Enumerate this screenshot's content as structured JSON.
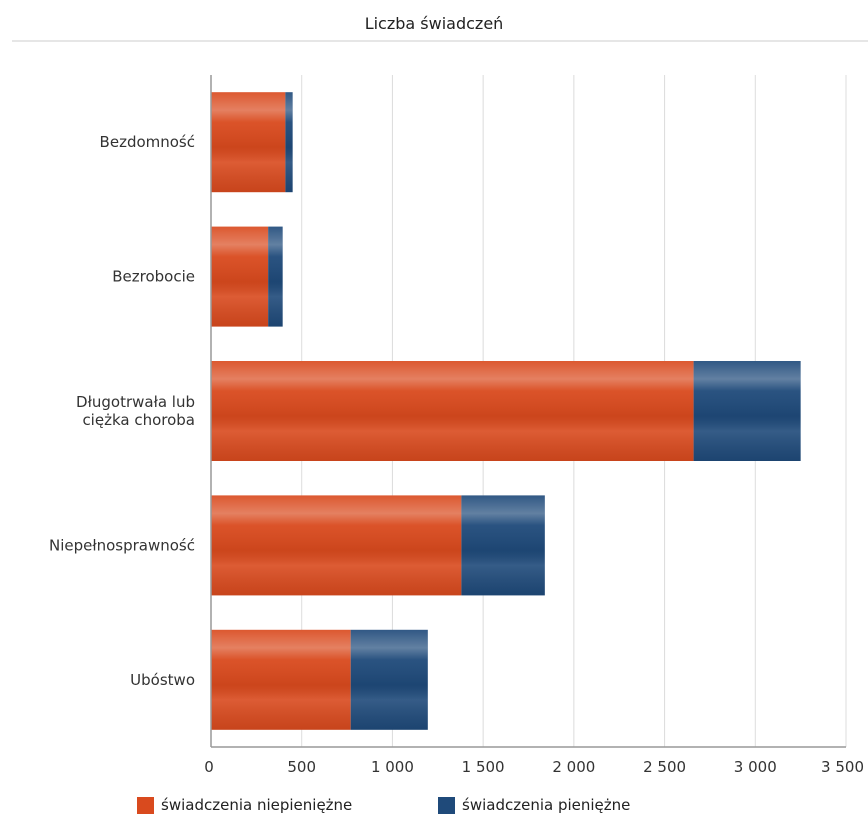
{
  "chart_data": {
    "type": "bar",
    "orientation": "horizontal",
    "stacked": true,
    "title": "Liczba świadczeń",
    "categories": [
      "Bezdomność",
      "Bezrobocie",
      "Długotrwała lub ciężka choroba",
      "Niepełnosprawność",
      "Ubóstwo"
    ],
    "category_label_lines": [
      [
        "Bezdomność"
      ],
      [
        "Bezrobocie"
      ],
      [
        "Długotrwała lub",
        "ciężka choroba"
      ],
      [
        "Niepełnosprawność"
      ],
      [
        "Ubóstwo"
      ]
    ],
    "series": [
      {
        "name": "świadczenia niepieniężne",
        "color": "#d94a1e",
        "values": [
          410,
          315,
          2660,
          1380,
          770
        ]
      },
      {
        "name": "świadczenia pieniężne",
        "color": "#1f4a7a",
        "values": [
          40,
          80,
          590,
          460,
          425
        ]
      }
    ],
    "xlim": [
      0,
      3500
    ],
    "xticks": [
      0,
      500,
      1000,
      1500,
      2000,
      2500,
      3000,
      3500
    ],
    "xtick_labels": [
      "0",
      "500",
      "1 000",
      "1 500",
      "2 000",
      "2 500",
      "3 000",
      "3 500"
    ],
    "grid": true,
    "legend_position": "bottom"
  }
}
